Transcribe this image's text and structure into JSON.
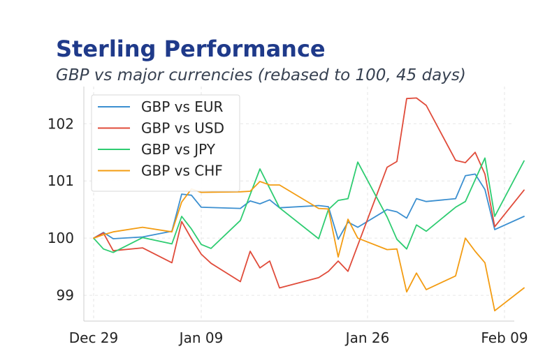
{
  "chart_data": {
    "type": "line",
    "title": "Sterling Performance",
    "subtitle": "GBP vs major currencies (rebased to 100, 45 days)",
    "xlabel": "",
    "ylabel": "",
    "x_start": "2025-12-29",
    "xlim": [
      "2025-12-28",
      "2026-02-10"
    ],
    "ylim": [
      98.55,
      102.65
    ],
    "x_ticks": [
      {
        "label": "Dec 29",
        "date": "2025-12-29"
      },
      {
        "label": "Jan 09",
        "date": "2026-01-09"
      },
      {
        "label": "Jan 26",
        "date": "2026-01-26"
      },
      {
        "label": "Feb 09",
        "date": "2026-02-09"
      }
    ],
    "y_ticks": [
      99,
      100,
      101,
      102
    ],
    "grid": true,
    "legend_position": "top-left",
    "series": [
      {
        "name": "GBP vs EUR",
        "color": "#3b8fd0",
        "points": [
          [
            "2025-12-29",
            100.0
          ],
          [
            "2025-12-30",
            100.1
          ],
          [
            "2025-12-31",
            99.99
          ],
          [
            "2026-01-03",
            100.02
          ],
          [
            "2026-01-06",
            100.12
          ],
          [
            "2026-01-07",
            100.77
          ],
          [
            "2026-01-08",
            100.75
          ],
          [
            "2026-01-09",
            100.54
          ],
          [
            "2026-01-13",
            100.52
          ],
          [
            "2026-01-14",
            100.65
          ],
          [
            "2026-01-15",
            100.6
          ],
          [
            "2026-01-16",
            100.67
          ],
          [
            "2026-01-17",
            100.53
          ],
          [
            "2026-01-21",
            100.57
          ],
          [
            "2026-01-22",
            100.55
          ],
          [
            "2026-01-23",
            99.98
          ],
          [
            "2026-01-24",
            100.28
          ],
          [
            "2026-01-25",
            100.19
          ],
          [
            "2026-01-28",
            100.5
          ],
          [
            "2026-01-29",
            100.46
          ],
          [
            "2026-01-30",
            100.35
          ],
          [
            "2026-01-31",
            100.69
          ],
          [
            "2026-02-01",
            100.64
          ],
          [
            "2026-02-04",
            100.69
          ],
          [
            "2026-02-05",
            101.09
          ],
          [
            "2026-02-06",
            101.12
          ],
          [
            "2026-02-07",
            100.85
          ],
          [
            "2026-02-08",
            100.15
          ],
          [
            "2026-02-11",
            100.38
          ]
        ]
      },
      {
        "name": "GBP vs USD",
        "color": "#e04b3a",
        "points": [
          [
            "2025-12-29",
            100.0
          ],
          [
            "2025-12-30",
            100.09
          ],
          [
            "2025-12-31",
            99.78
          ],
          [
            "2026-01-03",
            99.83
          ],
          [
            "2026-01-06",
            99.57
          ],
          [
            "2026-01-07",
            100.29
          ],
          [
            "2026-01-08",
            99.99
          ],
          [
            "2026-01-09",
            99.72
          ],
          [
            "2026-01-10",
            99.56
          ],
          [
            "2026-01-13",
            99.24
          ],
          [
            "2026-01-14",
            99.77
          ],
          [
            "2026-01-15",
            99.48
          ],
          [
            "2026-01-16",
            99.6
          ],
          [
            "2026-01-17",
            99.13
          ],
          [
            "2026-01-21",
            99.31
          ],
          [
            "2026-01-22",
            99.42
          ],
          [
            "2026-01-23",
            99.6
          ],
          [
            "2026-01-24",
            99.42
          ],
          [
            "2026-01-28",
            101.24
          ],
          [
            "2026-01-29",
            101.34
          ],
          [
            "2026-01-30",
            102.44
          ],
          [
            "2026-01-31",
            102.45
          ],
          [
            "2026-02-01",
            102.32
          ],
          [
            "2026-02-04",
            101.36
          ],
          [
            "2026-02-05",
            101.32
          ],
          [
            "2026-02-06",
            101.5
          ],
          [
            "2026-02-07",
            101.12
          ],
          [
            "2026-02-08",
            100.2
          ],
          [
            "2026-02-11",
            100.84
          ]
        ]
      },
      {
        "name": "GBP vs JPY",
        "color": "#2ecc71",
        "points": [
          [
            "2025-12-29",
            100.0
          ],
          [
            "2025-12-30",
            99.81
          ],
          [
            "2025-12-31",
            99.75
          ],
          [
            "2026-01-03",
            100.01
          ],
          [
            "2026-01-06",
            99.9
          ],
          [
            "2026-01-07",
            100.38
          ],
          [
            "2026-01-08",
            100.16
          ],
          [
            "2026-01-09",
            99.89
          ],
          [
            "2026-01-10",
            99.82
          ],
          [
            "2026-01-13",
            100.31
          ],
          [
            "2026-01-15",
            101.21
          ],
          [
            "2026-01-17",
            100.53
          ],
          [
            "2026-01-21",
            99.99
          ],
          [
            "2026-01-22",
            100.5
          ],
          [
            "2026-01-23",
            100.66
          ],
          [
            "2026-01-24",
            100.69
          ],
          [
            "2026-01-25",
            101.33
          ],
          [
            "2026-01-28",
            100.37
          ],
          [
            "2026-01-29",
            99.98
          ],
          [
            "2026-01-30",
            99.81
          ],
          [
            "2026-01-31",
            100.23
          ],
          [
            "2026-02-01",
            100.12
          ],
          [
            "2026-02-04",
            100.54
          ],
          [
            "2026-02-05",
            100.64
          ],
          [
            "2026-02-07",
            101.4
          ],
          [
            "2026-02-08",
            100.38
          ],
          [
            "2026-02-11",
            101.35
          ]
        ]
      },
      {
        "name": "GBP vs CHF",
        "color": "#f39c12",
        "points": [
          [
            "2025-12-29",
            100.0
          ],
          [
            "2025-12-30",
            100.06
          ],
          [
            "2025-12-31",
            100.11
          ],
          [
            "2026-01-03",
            100.19
          ],
          [
            "2026-01-06",
            100.11
          ],
          [
            "2026-01-07",
            100.63
          ],
          [
            "2026-01-08",
            100.86
          ],
          [
            "2026-01-09",
            100.8
          ],
          [
            "2026-01-13",
            100.81
          ],
          [
            "2026-01-14",
            100.82
          ],
          [
            "2026-01-15",
            100.99
          ],
          [
            "2026-01-16",
            100.93
          ],
          [
            "2026-01-17",
            100.93
          ],
          [
            "2026-01-21",
            100.52
          ],
          [
            "2026-01-22",
            100.51
          ],
          [
            "2026-01-23",
            99.67
          ],
          [
            "2026-01-24",
            100.33
          ],
          [
            "2026-01-25",
            100.0
          ],
          [
            "2026-01-28",
            99.8
          ],
          [
            "2026-01-29",
            99.81
          ],
          [
            "2026-01-30",
            99.06
          ],
          [
            "2026-01-31",
            99.39
          ],
          [
            "2026-02-01",
            99.1
          ],
          [
            "2026-02-04",
            99.34
          ],
          [
            "2026-02-05",
            100.0
          ],
          [
            "2026-02-06",
            99.77
          ],
          [
            "2026-02-07",
            99.57
          ],
          [
            "2026-02-08",
            98.73
          ],
          [
            "2026-02-11",
            99.13
          ]
        ]
      }
    ]
  }
}
